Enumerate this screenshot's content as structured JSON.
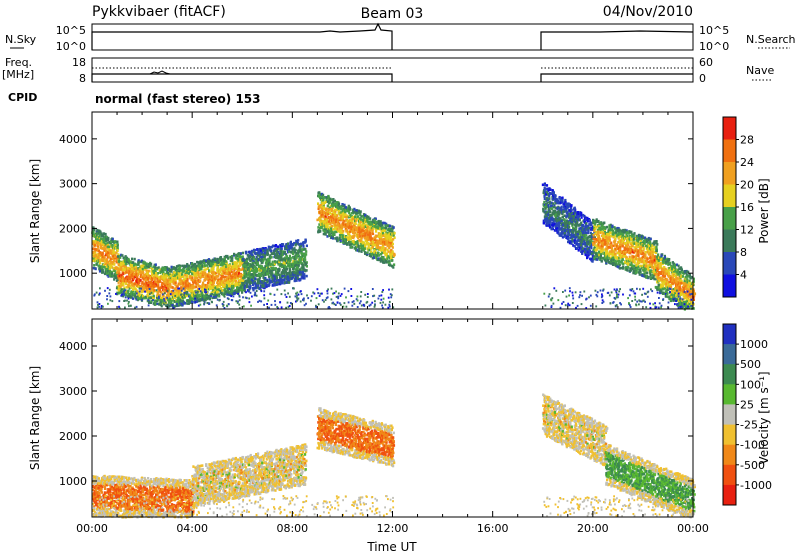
{
  "header": {
    "radar": "Pykkvibaer (fitACF)",
    "beam": "Beam 03",
    "date": "04/Nov/2010"
  },
  "status_panels": {
    "nsky_label": "N.Sky",
    "nsky_ticks": [
      "10^5",
      "10^0"
    ],
    "nsearch_label": "N.Search",
    "nsearch_ticks": [
      "10^5",
      "10^0"
    ],
    "freq_label_line1": "Freq.",
    "freq_label_line2": "[MHz]",
    "freq_ticks": [
      "18",
      "8"
    ],
    "nave_label": "Nave",
    "nave_ticks": [
      "60",
      "0"
    ],
    "cpid_label": "CPID",
    "cpid_text": "normal (fast stereo) 153"
  },
  "colors": {
    "power": [
      "#1010e0",
      "#2a48b8",
      "#3b7a5a",
      "#48a048",
      "#e6d020",
      "#f0a020",
      "#f07010",
      "#e82010"
    ],
    "velocity": [
      "#e82010",
      "#f05010",
      "#f08818",
      "#f0c030",
      "#c0c0b8",
      "#58b830",
      "#3c8a50",
      "#3a6a98",
      "#2030c0"
    ]
  },
  "chart_data": [
    {
      "type": "heatmap",
      "name": "power-panel",
      "ylabel": "Slant Range [km]",
      "xlabel": "",
      "x_ticks": [
        "00:00",
        "04:00",
        "08:00",
        "12:00",
        "16:00",
        "20:00",
        "00:00"
      ],
      "xlim_hours": [
        0,
        24
      ],
      "ylim_km": [
        200,
        4600
      ],
      "y_ticks": [
        1000,
        2000,
        3000,
        4000
      ],
      "colorbar": {
        "label": "Power [dB]",
        "ticks": [
          "4",
          "8",
          "12",
          "16",
          "20",
          "24",
          "28"
        ],
        "range": [
          0,
          30
        ]
      },
      "data_gaps_hours": [
        [
          12,
          18
        ]
      ],
      "ridges": [
        {
          "hour_start": 0.0,
          "hour_end": 1.0,
          "range_km": [
            1600,
            1300
          ],
          "value_db": 24
        },
        {
          "hour_start": 1.0,
          "hour_end": 3.0,
          "range_km": [
            1000,
            700
          ],
          "value_db": 26
        },
        {
          "hour_start": 3.0,
          "hour_end": 6.0,
          "range_km": [
            700,
            1050
          ],
          "value_db": 24
        },
        {
          "hour_start": 6.0,
          "hour_end": 8.5,
          "range_km": [
            1050,
            1350
          ],
          "value_db": 14
        },
        {
          "hour_start": 9.0,
          "hour_end": 12.0,
          "range_km": [
            2400,
            1600
          ],
          "value_db": 24
        },
        {
          "hour_start": 18.0,
          "hour_end": 20.0,
          "range_km": [
            2600,
            1700
          ],
          "value_db": 10
        },
        {
          "hour_start": 20.0,
          "hour_end": 22.5,
          "range_km": [
            1800,
            1300
          ],
          "value_db": 24
        },
        {
          "hour_start": 22.5,
          "hour_end": 24.0,
          "range_km": [
            1100,
            500
          ],
          "value_db": 24
        }
      ]
    },
    {
      "type": "heatmap",
      "name": "velocity-panel",
      "ylabel": "Slant Range [km]",
      "xlabel": "Time UT",
      "x_ticks": [
        "00:00",
        "04:00",
        "08:00",
        "12:00",
        "16:00",
        "20:00",
        "00:00"
      ],
      "xlim_hours": [
        0,
        24
      ],
      "ylim_km": [
        200,
        4600
      ],
      "y_ticks": [
        1000,
        2000,
        3000,
        4000
      ],
      "colorbar": {
        "label": "Velocity [m s⁻¹]",
        "ticks": [
          "1000",
          "500",
          "100",
          "25",
          "-25",
          "-100",
          "-500",
          "-1000"
        ]
      },
      "data_gaps_hours": [
        [
          12,
          18
        ]
      ],
      "ridges": [
        {
          "hour_start": 0.0,
          "hour_end": 4.0,
          "range_km": [
            700,
            600
          ],
          "value_class": -100
        },
        {
          "hour_start": 4.0,
          "hour_end": 8.5,
          "range_km": [
            900,
            1400
          ],
          "value_class": 0
        },
        {
          "hour_start": 9.0,
          "hour_end": 12.0,
          "range_km": [
            2200,
            1800
          ],
          "value_class": -100
        },
        {
          "hour_start": 18.0,
          "hour_end": 20.5,
          "range_km": [
            2500,
            1800
          ],
          "value_class": 0
        },
        {
          "hour_start": 20.5,
          "hour_end": 24.0,
          "range_km": [
            1400,
            600
          ],
          "value_class": 100
        }
      ]
    }
  ]
}
